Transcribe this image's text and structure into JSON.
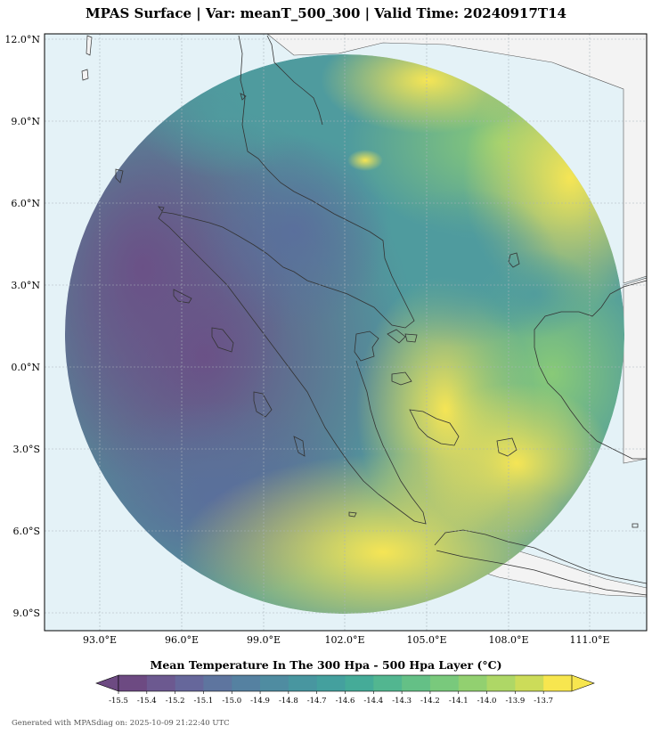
{
  "title": "MPAS Surface | Var: meanT_500_300 | Valid Time: 20240917T14",
  "map": {
    "lat_ticks": [
      "12.0°N",
      "9.0°N",
      "6.0°N",
      "3.0°N",
      "0.0°N",
      "3.0°S",
      "6.0°S",
      "9.0°S"
    ],
    "lon_ticks": [
      "93.0°E",
      "96.0°E",
      "99.0°E",
      "102.0°E",
      "105.0°E",
      "108.0°E",
      "111.0°E"
    ],
    "colors": {
      "ocean": "#e4f2f7",
      "land": "#f3f3f3",
      "coast": "#333333",
      "grid": "#aab4bb"
    }
  },
  "colorbar": {
    "title": "Mean Temperature In The 300 Hpa - 500 Hpa Layer (°C)",
    "tick_labels": [
      "-15.5",
      "-15.4",
      "-15.2",
      "-15.1",
      "-15.0",
      "-14.9",
      "-14.8",
      "-14.7",
      "-14.6",
      "-14.4",
      "-14.3",
      "-14.2",
      "-14.1",
      "-14.0",
      "-13.9",
      "-13.7"
    ],
    "colors": [
      "#6d4a82",
      "#6c5990",
      "#66679b",
      "#5e759f",
      "#5581a1",
      "#4f8ca1",
      "#4896a0",
      "#44a09e",
      "#45ab98",
      "#52b690",
      "#64c086",
      "#79c97c",
      "#92d070",
      "#aed766",
      "#ccdc59",
      "#f7e64f"
    ],
    "extend": "both"
  },
  "footer": "Generated with MPASdiag on: 2025-10-09 21:22:40 UTC"
}
